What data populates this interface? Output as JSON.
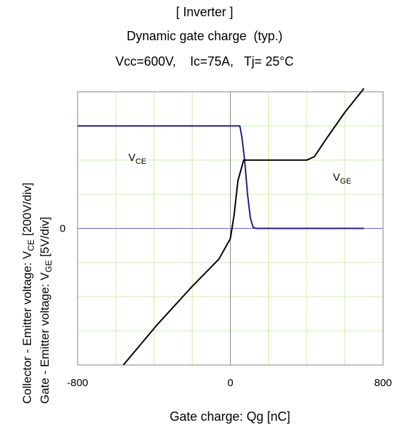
{
  "chart_data": {
    "type": "line",
    "title": "[ Inverter ]",
    "subtitle": "Dynamic gate charge  (typ.)",
    "conditions": "Vcc=600V,    Ic=75A,   Tj= 25°C",
    "xlabel": "Gate charge: Qg [nC]",
    "ylabel_outer": "Collector - Emitter voltage: V_CE [200V/div]",
    "ylabel_inner": "Gate - Emitter voltage:      V_GE [5V/div]",
    "xlim": [
      -800,
      800
    ],
    "x_ticks": [
      "-800",
      "0",
      "800"
    ],
    "y_ticks": [
      "0"
    ],
    "y_divisions": {
      "per_div_vce_V": 200,
      "per_div_vge_V": 5,
      "divisions_above_zero": 4,
      "divisions_below_zero": 4
    },
    "grid": true,
    "series": [
      {
        "name": "V_CE",
        "label_main": "V",
        "label_sub": "CE",
        "color": "#1f1f7a",
        "unit": "V",
        "x": [
          -800,
          50,
          60,
          75,
          90,
          105,
          120,
          135,
          700
        ],
        "y": [
          600,
          600,
          540,
          400,
          200,
          60,
          5,
          0,
          0
        ]
      },
      {
        "name": "V_GE",
        "label_main": "V",
        "label_sub": "GE",
        "color": "#000000",
        "unit": "V",
        "x": [
          -560,
          -380,
          -200,
          -60,
          0,
          20,
          40,
          70,
          400,
          440,
          500,
          600,
          700
        ],
        "y": [
          -20,
          -14,
          -8.5,
          -4.5,
          -1.5,
          2,
          7,
          10,
          10,
          10.5,
          13,
          17,
          20.5
        ]
      }
    ]
  }
}
